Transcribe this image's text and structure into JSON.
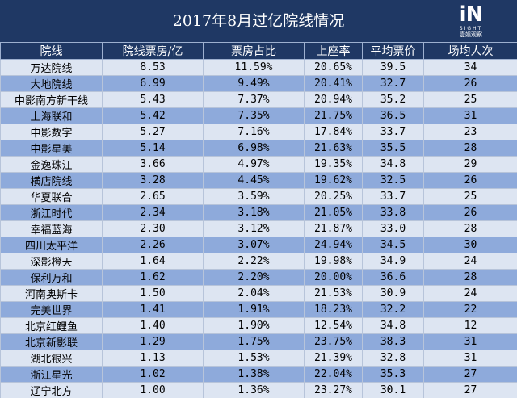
{
  "title": "2017年8月过亿院线情况",
  "logo": {
    "mark": "iN",
    "word": "SIGHT",
    "sub": "壹娱观察"
  },
  "headers": [
    "院线",
    "院线票房/亿",
    "票房占比",
    "上座率",
    "平均票价",
    "场均人次"
  ],
  "rows": [
    [
      "万达院线",
      "8.53",
      "11.59%",
      "20.65%",
      "39.5",
      "34"
    ],
    [
      "大地院线",
      "6.99",
      "9.49%",
      "20.41%",
      "32.7",
      "26"
    ],
    [
      "中影南方新干线",
      "5.43",
      "7.37%",
      "20.94%",
      "35.2",
      "25"
    ],
    [
      "上海联和",
      "5.42",
      "7.35%",
      "21.75%",
      "36.5",
      "31"
    ],
    [
      "中影数字",
      "5.27",
      "7.16%",
      "17.84%",
      "33.7",
      "23"
    ],
    [
      "中影星美",
      "5.14",
      "6.98%",
      "21.63%",
      "35.5",
      "28"
    ],
    [
      "金逸珠江",
      "3.66",
      "4.97%",
      "19.35%",
      "34.8",
      "29"
    ],
    [
      "横店院线",
      "3.28",
      "4.45%",
      "19.62%",
      "32.5",
      "26"
    ],
    [
      "华夏联合",
      "2.65",
      "3.59%",
      "20.25%",
      "33.7",
      "25"
    ],
    [
      "浙江时代",
      "2.34",
      "3.18%",
      "21.05%",
      "33.8",
      "26"
    ],
    [
      "幸福蓝海",
      "2.30",
      "3.12%",
      "21.87%",
      "33.0",
      "28"
    ],
    [
      "四川太平洋",
      "2.26",
      "3.07%",
      "24.94%",
      "34.5",
      "30"
    ],
    [
      "深影橙天",
      "1.64",
      "2.22%",
      "19.98%",
      "34.9",
      "24"
    ],
    [
      "保利万和",
      "1.62",
      "2.20%",
      "20.00%",
      "36.6",
      "28"
    ],
    [
      "河南奥斯卡",
      "1.50",
      "2.04%",
      "21.53%",
      "30.9",
      "24"
    ],
    [
      "完美世界",
      "1.41",
      "1.91%",
      "18.23%",
      "32.2",
      "22"
    ],
    [
      "北京红鲤鱼",
      "1.40",
      "1.90%",
      "12.54%",
      "34.8",
      "12"
    ],
    [
      "北京新影联",
      "1.29",
      "1.75%",
      "23.75%",
      "38.3",
      "31"
    ],
    [
      "湖北银兴",
      "1.13",
      "1.53%",
      "21.39%",
      "32.8",
      "31"
    ],
    [
      "浙江星光",
      "1.02",
      "1.38%",
      "22.04%",
      "35.3",
      "27"
    ],
    [
      "辽宁北方",
      "1.00",
      "1.36%",
      "23.27%",
      "30.1",
      "27"
    ]
  ],
  "colors": {
    "header_bg": "#1f3864",
    "row_light": "#dde5f2",
    "row_dark": "#8eaadb"
  }
}
